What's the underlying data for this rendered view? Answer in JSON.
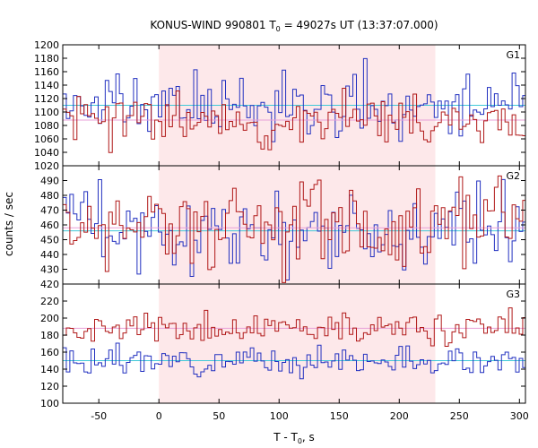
{
  "chart_data": {
    "type": "line",
    "title": "KONUS-WIND 990801 T",
    "title_sub": "0",
    "title_rest": " = 49027s UT (13:37:07.000)",
    "xlabel": "T - T",
    "xlabel_sub": "0",
    "xlabel_rest": ", s",
    "ylabel": "counts / sec",
    "xlim": [
      -80,
      305
    ],
    "xticks": [
      -50,
      0,
      50,
      100,
      150,
      200,
      250,
      300
    ],
    "highlight_interval": [
      0,
      230
    ],
    "bin_width": 2.944,
    "x_start": -80,
    "colors": {
      "highlight": "#fde8ea",
      "red_series": "#b01818",
      "blue_series": "#2230c0",
      "red_background": "#e8a0d8",
      "blue_background": "#40c8d8",
      "frame": "#000000"
    },
    "panels": [
      {
        "label": "G1",
        "ylim": [
          1020,
          1200
        ],
        "yticks": [
          1020,
          1040,
          1060,
          1080,
          1100,
          1120,
          1140,
          1160,
          1180,
          1200
        ],
        "series": [
          {
            "color_key": "blue_series",
            "background": 1110,
            "amp": 24,
            "seed": 11
          },
          {
            "color_key": "red_series",
            "background": 1088,
            "amp": 20,
            "seed": 23
          }
        ]
      },
      {
        "label": "G2",
        "ylim": [
          420,
          500
        ],
        "yticks": [
          420,
          430,
          440,
          450,
          460,
          470,
          480,
          490
        ],
        "series": [
          {
            "color_key": "blue_series",
            "background": 456,
            "amp": 14,
            "seed": 37
          },
          {
            "color_key": "red_series",
            "background": 458,
            "amp": 16,
            "seed": 41
          }
        ]
      },
      {
        "label": "G3",
        "ylim": [
          100,
          240
        ],
        "yticks": [
          100,
          120,
          140,
          160,
          180,
          200,
          220
        ],
        "series": [
          {
            "color_key": "red_series",
            "background": 188,
            "amp": 9,
            "seed": 53
          },
          {
            "color_key": "blue_series",
            "background": 150,
            "amp": 8,
            "seed": 67
          }
        ]
      }
    ]
  }
}
